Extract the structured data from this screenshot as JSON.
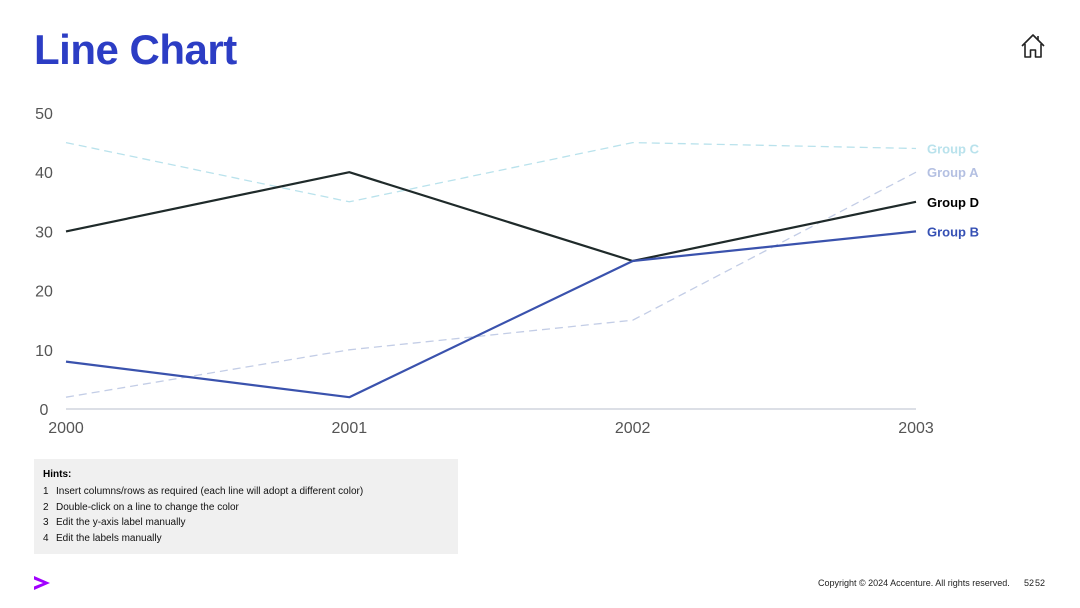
{
  "slide": {
    "title": "Line Chart",
    "home_icon": "home-icon",
    "logo_icon": "accenture-chevron-icon",
    "copyright": "Copyright © 2024 Accenture. All rights reserved.",
    "page_number_a": "52",
    "page_number_b": "52"
  },
  "hints": {
    "title": "Hints:",
    "items": [
      {
        "num": "1",
        "text": "Insert columns/rows as required (each line will adopt a different color)"
      },
      {
        "num": "2",
        "text": "Double-click on a line to change the color"
      },
      {
        "num": "3",
        "text": "Edit the y-axis label manually"
      },
      {
        "num": "4",
        "text": "Edit the labels manually"
      }
    ]
  },
  "chart_data": {
    "type": "line",
    "categories": [
      "2000",
      "2001",
      "2002",
      "2003"
    ],
    "ylim": [
      0,
      50
    ],
    "yticks": [
      0,
      10,
      20,
      30,
      40,
      50
    ],
    "grid": false,
    "legend": "right-end labels",
    "series": [
      {
        "name": "Group C",
        "values": [
          45,
          35,
          45,
          44
        ],
        "color": "#b9e2ec",
        "style": "dashed",
        "label_color": "#b9e2ec"
      },
      {
        "name": "Group A",
        "values": [
          2,
          10,
          15,
          40
        ],
        "color": "#c3cde6",
        "style": "dashed",
        "label_color": "#b4c0e2"
      },
      {
        "name": "Group D",
        "values": [
          30,
          40,
          25,
          35
        ],
        "color": "#1f2a2a",
        "style": "solid",
        "label_color": "#000000"
      },
      {
        "name": "Group B",
        "values": [
          8,
          2,
          25,
          30
        ],
        "color": "#3a52ad",
        "style": "solid",
        "label_color": "#3550b4"
      }
    ]
  }
}
